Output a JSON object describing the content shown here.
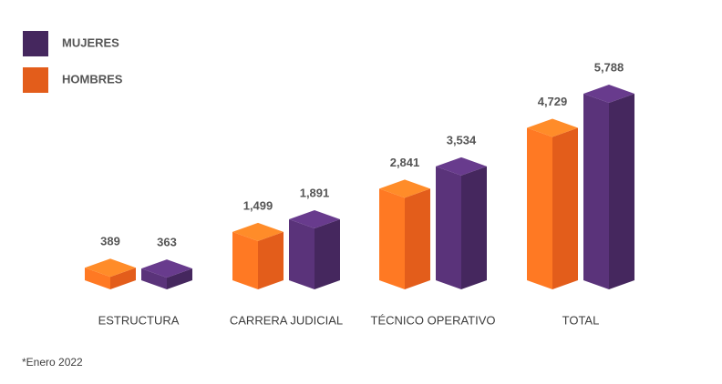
{
  "chart_data": {
    "type": "bar3d",
    "categories": [
      "ESTRUCTURA",
      "CARRERA JUDICIAL",
      "TÉCNICO OPERATIVO",
      "TOTAL"
    ],
    "series": [
      {
        "name": "MUJERES",
        "color": "#45275e",
        "values": [
          363,
          1891,
          3534,
          5788
        ],
        "value_labels": [
          "363",
          "1,891",
          "3,534",
          "5,788"
        ]
      },
      {
        "name": "HOMBRES",
        "color": "#e35d1b",
        "values": [
          389,
          1499,
          2841,
          4729
        ],
        "value_labels": [
          "389",
          "1,499",
          "2,841",
          "4,729"
        ]
      }
    ],
    "footnote": "*Enero 2022"
  }
}
